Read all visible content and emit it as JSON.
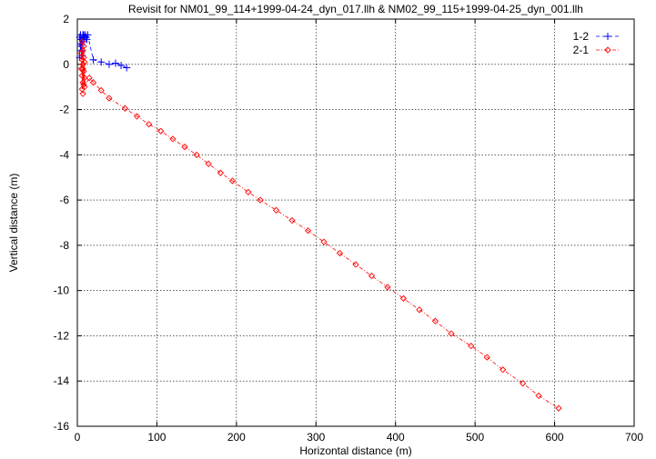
{
  "chart_data": {
    "type": "scatter",
    "title": "Revisit for NM01_99_114+1999-04-24_dyn_017.llh & NM02_99_115+1999-04-25_dyn_001.llh",
    "xlabel": "Horizontal distance (m)",
    "ylabel": "Vertical distance (m)",
    "xlim": [
      0,
      700
    ],
    "ylim": [
      -16,
      2
    ],
    "x_ticks": [
      0,
      100,
      200,
      300,
      400,
      500,
      600,
      700
    ],
    "y_ticks": [
      2,
      0,
      -2,
      -4,
      -6,
      -8,
      -10,
      -12,
      -14,
      -16
    ],
    "grid": true,
    "legend_position": "top-right",
    "series": [
      {
        "name": "1-2",
        "color": "#0000ff",
        "marker": "plus",
        "line": "dashed",
        "points": [
          [
            3,
            1.2
          ],
          [
            4,
            1.3
          ],
          [
            5,
            0.9
          ],
          [
            6,
            1.1
          ],
          [
            7,
            1.3
          ],
          [
            8,
            1.0
          ],
          [
            9,
            1.2
          ],
          [
            10,
            1.3
          ],
          [
            11,
            1.2
          ],
          [
            12,
            1.1
          ],
          [
            13,
            1.3
          ],
          [
            4,
            0.8
          ],
          [
            5,
            0.6
          ],
          [
            6,
            0.4
          ],
          [
            3,
            0.3
          ],
          [
            4,
            0.9
          ],
          [
            5,
            1.1
          ],
          [
            8,
            1.3
          ],
          [
            20,
            0.2
          ],
          [
            30,
            0.1
          ],
          [
            40,
            0.0
          ],
          [
            48,
            0.05
          ],
          [
            55,
            -0.05
          ],
          [
            62,
            -0.15
          ]
        ]
      },
      {
        "name": "2-1",
        "color": "#ff0000",
        "marker": "diamond",
        "line": "dashdot",
        "points": [
          [
            6,
            1.0
          ],
          [
            7,
            0.6
          ],
          [
            6,
            0.2
          ],
          [
            7,
            -0.2
          ],
          [
            6,
            -0.5
          ],
          [
            7,
            -0.8
          ],
          [
            6,
            -1.1
          ],
          [
            7,
            -1.3
          ],
          [
            8,
            0.8
          ],
          [
            8,
            0.3
          ],
          [
            8,
            -0.3
          ],
          [
            8,
            -0.9
          ],
          [
            5,
            0.5
          ],
          [
            5,
            -0.2
          ],
          [
            9,
            0.1
          ],
          [
            9,
            -0.6
          ],
          [
            9,
            -1.0
          ],
          [
            7,
            0.0
          ],
          [
            15,
            -0.6
          ],
          [
            20,
            -0.8
          ],
          [
            30,
            -1.15
          ],
          [
            40,
            -1.5
          ],
          [
            60,
            -1.95
          ],
          [
            75,
            -2.3
          ],
          [
            90,
            -2.65
          ],
          [
            105,
            -2.95
          ],
          [
            120,
            -3.3
          ],
          [
            135,
            -3.65
          ],
          [
            150,
            -4.0
          ],
          [
            165,
            -4.4
          ],
          [
            180,
            -4.8
          ],
          [
            195,
            -5.15
          ],
          [
            215,
            -5.65
          ],
          [
            230,
            -6.0
          ],
          [
            250,
            -6.45
          ],
          [
            270,
            -6.9
          ],
          [
            290,
            -7.35
          ],
          [
            310,
            -7.85
          ],
          [
            330,
            -8.35
          ],
          [
            350,
            -8.85
          ],
          [
            370,
            -9.35
          ],
          [
            390,
            -9.85
          ],
          [
            410,
            -10.35
          ],
          [
            430,
            -10.85
          ],
          [
            450,
            -11.35
          ],
          [
            470,
            -11.9
          ],
          [
            495,
            -12.45
          ],
          [
            515,
            -12.95
          ],
          [
            535,
            -13.5
          ],
          [
            560,
            -14.1
          ],
          [
            580,
            -14.65
          ],
          [
            605,
            -15.2
          ]
        ]
      }
    ]
  }
}
